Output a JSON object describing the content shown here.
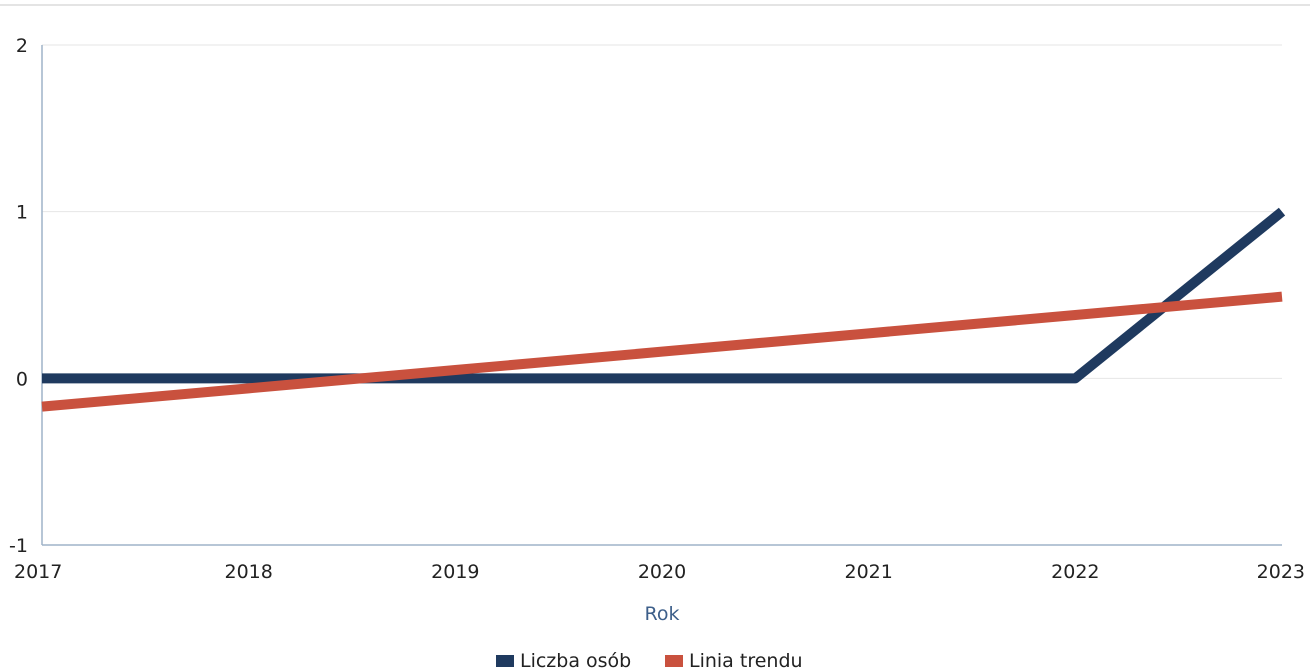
{
  "chart_data": {
    "type": "line",
    "title": "",
    "xlabel": "Rok",
    "ylabel": "",
    "x": [
      2017,
      2018,
      2019,
      2020,
      2021,
      2022,
      2023
    ],
    "xlim": [
      2017,
      2023
    ],
    "ylim": [
      -1,
      2
    ],
    "y_ticks": [
      -1,
      0,
      1,
      2
    ],
    "grid": true,
    "legend_position": "bottom",
    "series": [
      {
        "name": "Liczba osób",
        "color": "#1f3a5f",
        "values": [
          0,
          0,
          0,
          0,
          0,
          0,
          1
        ]
      },
      {
        "name": "Linia trendu",
        "color": "#c9513e",
        "values": [
          -0.17,
          -0.06,
          0.05,
          0.16,
          0.27,
          0.38,
          0.49
        ]
      }
    ]
  }
}
